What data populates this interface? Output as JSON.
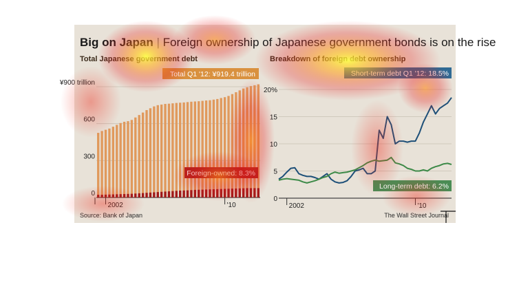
{
  "header": {
    "title_bold": "Big on Japan",
    "title_rest": "Foreign ownership of Japanese government bonds is on the rise"
  },
  "footer": {
    "source": "Source: Bank of Japan",
    "credit": "The Wall Street Journal"
  },
  "colors": {
    "background": "#e8e2d8",
    "bar_total": "#e0995c",
    "bar_foreign": "#a01a1a",
    "line_short": "#1d4f78",
    "line_long": "#3d8a48",
    "label_total": "#d9913f",
    "label_foreign": "#b0221e",
    "label_short": "#2f6a94",
    "label_long": "#4a8c55"
  },
  "chart_data": [
    {
      "type": "bar",
      "title": "Total Japanese government debt",
      "unit": "trillion yen",
      "ylim": [
        0,
        900
      ],
      "yticks": [
        "0",
        "300",
        "600",
        "¥900 trillion"
      ],
      "ytick_values": [
        0,
        300,
        600,
        900
      ],
      "xtick_labels": [
        "2002",
        "'10"
      ],
      "xtick_positions": [
        2,
        34
      ],
      "series": [
        {
          "name": "Total",
          "values": [
            525,
            540,
            550,
            560,
            575,
            590,
            605,
            615,
            620,
            630,
            650,
            670,
            690,
            710,
            725,
            740,
            750,
            755,
            760,
            762,
            765,
            768,
            770,
            772,
            775,
            778,
            780,
            782,
            785,
            788,
            790,
            795,
            800,
            808,
            815,
            825,
            840,
            855,
            870,
            885,
            895,
            905,
            912,
            919.4
          ]
        },
        {
          "name": "Foreign-owned",
          "values": [
            22,
            22,
            23,
            24,
            25,
            26,
            27,
            28,
            29,
            30,
            32,
            34,
            36,
            38,
            40,
            42,
            44,
            46,
            48,
            50,
            52,
            54,
            56,
            57,
            58,
            60,
            62,
            63,
            64,
            65,
            66,
            67,
            68,
            69,
            70,
            71,
            72,
            73,
            74,
            75,
            76,
            76,
            76,
            76
          ]
        }
      ],
      "annotations": {
        "total": "Total Q1 '12:  ¥919.4 trillion",
        "foreign": "Foreign-owned: 8.3%"
      }
    },
    {
      "type": "line",
      "title": "Breakdown of foreign debt ownership",
      "unit": "%",
      "ylim": [
        0,
        20
      ],
      "yticks": [
        "0",
        "5",
        "10",
        "15",
        "20%"
      ],
      "ytick_values": [
        0,
        5,
        10,
        15,
        20
      ],
      "xtick_labels": [
        "2002",
        "'10"
      ],
      "xtick_positions": [
        2,
        34
      ],
      "series": [
        {
          "name": "Short-term debt",
          "values": [
            3.5,
            4.0,
            4.8,
            5.5,
            5.6,
            4.5,
            4.2,
            4.0,
            4.0,
            3.8,
            3.5,
            4.0,
            4.5,
            3.5,
            3.0,
            2.8,
            2.9,
            3.2,
            4.0,
            5.0,
            5.2,
            5.5,
            4.5,
            4.5,
            5.0,
            12.5,
            11.0,
            15.0,
            13.5,
            10.0,
            10.5,
            10.5,
            10.3,
            10.5,
            10.5,
            12.0,
            14.0,
            15.5,
            17.0,
            15.5,
            16.5,
            17.0,
            17.5,
            18.5
          ]
        },
        {
          "name": "Long-term debt",
          "values": [
            3.3,
            3.5,
            3.6,
            3.5,
            3.4,
            3.3,
            3.0,
            2.8,
            3.0,
            3.2,
            3.5,
            3.8,
            4.0,
            4.5,
            4.8,
            4.6,
            4.7,
            4.8,
            5.0,
            5.2,
            5.6,
            6.0,
            6.5,
            6.8,
            7.0,
            6.8,
            6.9,
            7.0,
            7.5,
            6.5,
            6.3,
            6.0,
            5.5,
            5.3,
            5.0,
            5.0,
            5.2,
            5.0,
            5.5,
            5.8,
            6.0,
            6.3,
            6.4,
            6.2
          ]
        }
      ],
      "annotations": {
        "short": "Short-term debt Q1 '12:  18.5%",
        "long": "Long-term debt: 6.2%"
      }
    }
  ]
}
